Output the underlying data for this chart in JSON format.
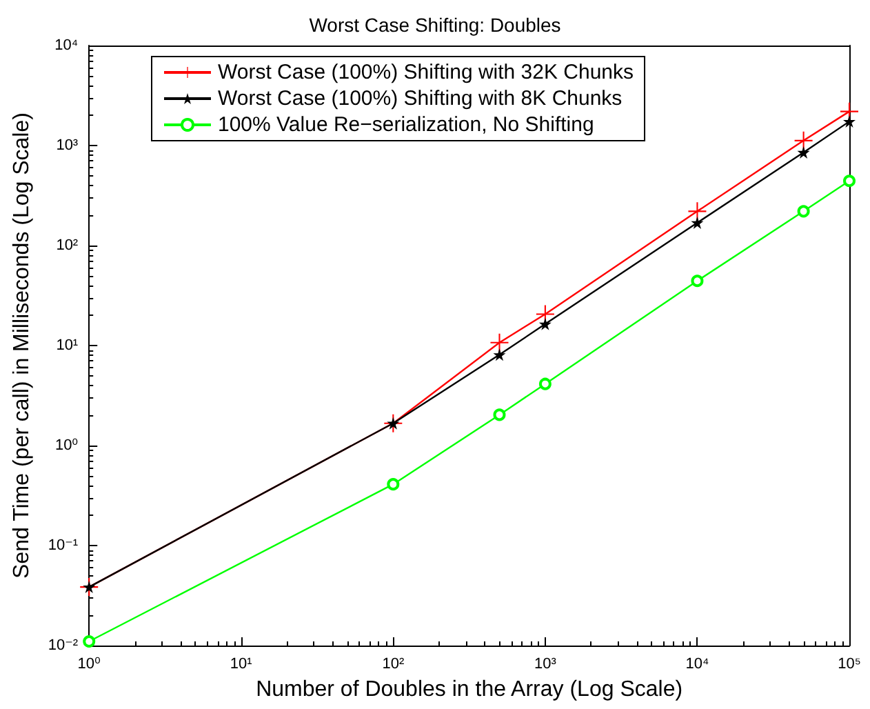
{
  "chart_data": {
    "type": "line",
    "title": "Worst Case Shifting: Doubles",
    "xlabel": "Number of Doubles in the Array (Log Scale)",
    "ylabel": "Send Time (per call) in Milliseconds (Log Scale)",
    "x": [
      1,
      100,
      500,
      1000,
      10000,
      50000,
      100000
    ],
    "series": [
      {
        "name": "Worst Case (100%) Shifting with 32K Chunks",
        "color": "#ff0000",
        "marker": "cross",
        "values": [
          0.0385,
          1.67,
          10.7,
          20.6,
          220,
          1120,
          2190
        ]
      },
      {
        "name": "Worst Case (100%) Shifting with 8K Chunks",
        "color": "#000000",
        "marker": "star",
        "values": [
          0.0385,
          1.67,
          8.1,
          16.4,
          169,
          853,
          1740
        ]
      },
      {
        "name": "100% Value Re−serialization, No Shifting",
        "color": "#00ff00",
        "marker": "circle",
        "values": [
          0.011,
          0.41,
          2.03,
          4.13,
          44.3,
          220,
          443
        ]
      }
    ],
    "log": "xy",
    "xlim": [
      1,
      100000
    ],
    "ylim": [
      0.01,
      10000
    ],
    "xticks": [
      {
        "value": 1,
        "label": "10⁰"
      },
      {
        "value": 10,
        "label": "10¹"
      },
      {
        "value": 100,
        "label": "10²"
      },
      {
        "value": 1000,
        "label": "10³"
      },
      {
        "value": 10000,
        "label": "10⁴"
      },
      {
        "value": 100000,
        "label": "10⁵"
      }
    ],
    "yticks": [
      {
        "value": 0.01,
        "label": "10⁻²"
      },
      {
        "value": 0.1,
        "label": "10⁻¹"
      },
      {
        "value": 1,
        "label": "10⁰"
      },
      {
        "value": 10,
        "label": "10¹"
      },
      {
        "value": 100,
        "label": "10²"
      },
      {
        "value": 1000,
        "label": "10³"
      },
      {
        "value": 10000,
        "label": "10⁴"
      }
    ],
    "grid": false,
    "legend": "top",
    "line_style": "solid"
  }
}
